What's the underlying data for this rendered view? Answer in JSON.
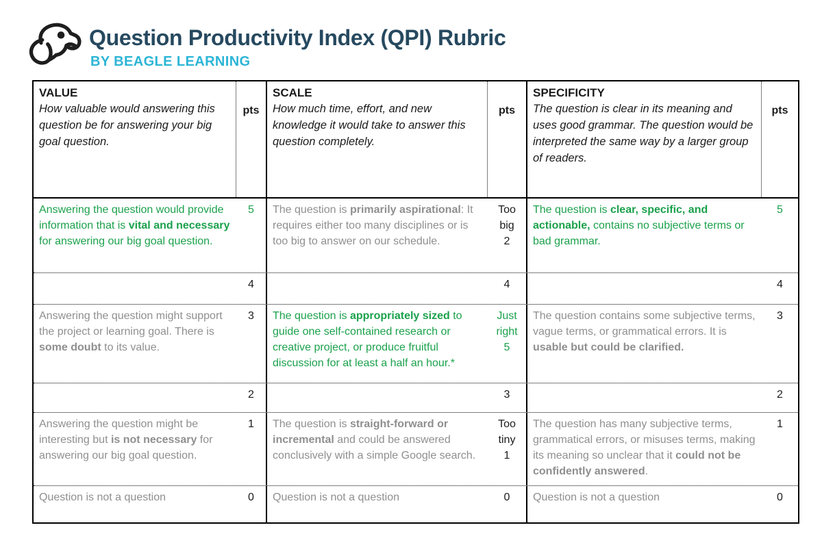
{
  "header": {
    "title": "Question Productivity Index (QPI) Rubric",
    "subtitle": "BY BEAGLE LEARNING",
    "logo_icon": "beagle-dog-icon"
  },
  "colors": {
    "title_color": "#26495f",
    "subtitle_color": "#2cb5d6",
    "green": "#1ba14c",
    "gray": "#8f8f8f",
    "dark": "#1b1b1b"
  },
  "table": {
    "columns": [
      {
        "title": "VALUE",
        "description": "How valuable would answering this question be for answering your big goal question.",
        "pts_label": "pts"
      },
      {
        "title": "SCALE",
        "description": "How much time, effort, and new knowledge it would take to answer this question completely.",
        "pts_label": "pts"
      },
      {
        "title": "SPECIFICITY",
        "description": "The question is clear in its meaning and uses good grammar. The question would be interpreted the same way by a larger group of readers.",
        "pts_label": "pts"
      }
    ],
    "rows": [
      {
        "cells": [
          {
            "tone": "green",
            "segments": [
              {
                "text": "Answering the question would provide information that is "
              },
              {
                "text": "vital and necessary",
                "bold": true
              },
              {
                "text": " for answering our big goal question."
              }
            ],
            "pts_lines": [
              "5"
            ],
            "pts_tone": "green"
          },
          {
            "tone": "gray",
            "segments": [
              {
                "text": "The question is "
              },
              {
                "text": "primarily aspirational",
                "bold": true
              },
              {
                "text": ": It requires either too many disciplines or is too big to answer on our schedule."
              }
            ],
            "pts_lines": [
              "Too",
              "big",
              "2"
            ],
            "pts_tone": "dark"
          },
          {
            "tone": "green",
            "segments": [
              {
                "text": "The question is "
              },
              {
                "text": "clear, specific, and actionable,",
                "bold": true
              },
              {
                "text": " contains no subjective terms or bad grammar."
              }
            ],
            "pts_lines": [
              "5"
            ],
            "pts_tone": "green"
          }
        ]
      },
      {
        "cells": [
          {
            "tone": "gray",
            "segments": [],
            "pts_lines": [
              "4"
            ],
            "pts_tone": "dark"
          },
          {
            "tone": "gray",
            "segments": [],
            "pts_lines": [
              "4"
            ],
            "pts_tone": "dark"
          },
          {
            "tone": "gray",
            "segments": [],
            "pts_lines": [
              "4"
            ],
            "pts_tone": "dark"
          }
        ]
      },
      {
        "cells": [
          {
            "tone": "gray",
            "segments": [
              {
                "text": "Answering the question might support the project or learning goal. There is "
              },
              {
                "text": "some doubt",
                "bold": true
              },
              {
                "text": " to its value."
              }
            ],
            "pts_lines": [
              "3"
            ],
            "pts_tone": "dark"
          },
          {
            "tone": "green",
            "segments": [
              {
                "text": "The question is "
              },
              {
                "text": "appropriately sized",
                "bold": true
              },
              {
                "text": " to guide one self-contained research or creative project, or produce fruitful discussion for at least a half an hour.*"
              }
            ],
            "pts_lines": [
              "Just",
              "right",
              "5"
            ],
            "pts_tone": "green"
          },
          {
            "tone": "gray",
            "segments": [
              {
                "text": "The question contains some subjective terms, vague terms, or grammatical errors. It is "
              },
              {
                "text": "usable but could be clarified.",
                "bold": true
              }
            ],
            "pts_lines": [
              "3"
            ],
            "pts_tone": "dark"
          }
        ]
      },
      {
        "cells": [
          {
            "tone": "gray",
            "segments": [],
            "pts_lines": [
              "2"
            ],
            "pts_tone": "dark"
          },
          {
            "tone": "gray",
            "segments": [],
            "pts_lines": [
              "3"
            ],
            "pts_tone": "dark"
          },
          {
            "tone": "gray",
            "segments": [],
            "pts_lines": [
              "2"
            ],
            "pts_tone": "dark"
          }
        ]
      },
      {
        "cells": [
          {
            "tone": "gray",
            "segments": [
              {
                "text": "Answering the question might be interesting but "
              },
              {
                "text": "is not necessary",
                "bold": true
              },
              {
                "text": " for answering our big goal question."
              }
            ],
            "pts_lines": [
              "1"
            ],
            "pts_tone": "dark"
          },
          {
            "tone": "gray",
            "segments": [
              {
                "text": "The question is "
              },
              {
                "text": "straight-forward or incremental",
                "bold": true
              },
              {
                "text": " and could be answered conclusively with a simple Google search."
              }
            ],
            "pts_lines": [
              "Too",
              "tiny",
              "1"
            ],
            "pts_tone": "dark"
          },
          {
            "tone": "gray",
            "segments": [
              {
                "text": "The question has many subjective terms, grammatical errors, or misuses terms, making its meaning so unclear that it "
              },
              {
                "text": "could not be confidently answered",
                "bold": true
              },
              {
                "text": "."
              }
            ],
            "pts_lines": [
              "1"
            ],
            "pts_tone": "dark"
          }
        ]
      },
      {
        "cells": [
          {
            "tone": "gray",
            "segments": [
              {
                "text": "Question is not a question"
              }
            ],
            "pts_lines": [
              "0"
            ],
            "pts_tone": "dark"
          },
          {
            "tone": "gray",
            "segments": [
              {
                "text": "Question is not a question"
              }
            ],
            "pts_lines": [
              "0"
            ],
            "pts_tone": "dark"
          },
          {
            "tone": "gray",
            "segments": [
              {
                "text": "Question is not a question"
              }
            ],
            "pts_lines": [
              "0"
            ],
            "pts_tone": "dark"
          }
        ]
      }
    ]
  }
}
